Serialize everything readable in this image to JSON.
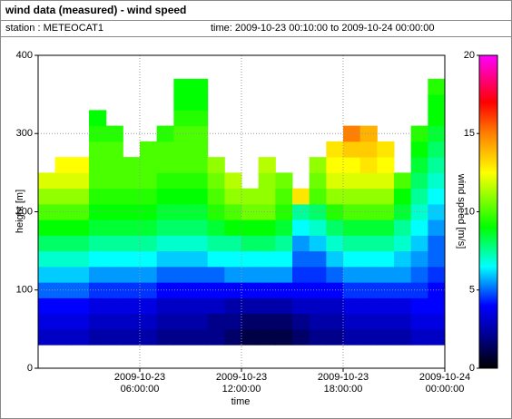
{
  "chart_data": {
    "type": "heatmap",
    "title": "wind data (measured) - wind speed",
    "station": "station : METEOCAT1",
    "time_range": "time: 2009-10-23 00:10:00 to 2009-10-24 00:00:00",
    "xlabel": "time",
    "ylabel": "height [m]",
    "colorbar_label": "wind speed [m/s]",
    "x": [
      "2009-10-23 00:00:00",
      "2009-10-23 01:00:00",
      "2009-10-23 02:00:00",
      "2009-10-23 03:00:00",
      "2009-10-23 04:00:00",
      "2009-10-23 05:00:00",
      "2009-10-23 06:00:00",
      "2009-10-23 07:00:00",
      "2009-10-23 08:00:00",
      "2009-10-23 09:00:00",
      "2009-10-23 10:00:00",
      "2009-10-23 11:00:00",
      "2009-10-23 12:00:00",
      "2009-10-23 13:00:00",
      "2009-10-23 14:00:00",
      "2009-10-23 15:00:00",
      "2009-10-23 16:00:00",
      "2009-10-23 17:00:00",
      "2009-10-23 18:00:00",
      "2009-10-23 19:00:00",
      "2009-10-23 20:00:00",
      "2009-10-23 21:00:00",
      "2009-10-23 22:00:00",
      "2009-10-23 23:00:00"
    ],
    "y": [
      40,
      60,
      80,
      100,
      120,
      140,
      160,
      180,
      200,
      220,
      240,
      260,
      280,
      300,
      320,
      340,
      360
    ],
    "z": [
      [
        3,
        3,
        3,
        2.5,
        2.5,
        2.5,
        2.5,
        2,
        2,
        2,
        2,
        1.5,
        1,
        1,
        1,
        1.5,
        2,
        2,
        2.5,
        2.5,
        2.5,
        2.5,
        3,
        3
      ],
      [
        3.5,
        3.5,
        3.5,
        3,
        3,
        3,
        3,
        2.5,
        2.5,
        2.5,
        2,
        2,
        1.5,
        1.5,
        1.5,
        2,
        2.5,
        2.5,
        3,
        3,
        3,
        3,
        3.5,
        3.5
      ],
      [
        4,
        4,
        4,
        3.5,
        3.5,
        3.5,
        3.5,
        3,
        3,
        3,
        3,
        2.5,
        2.5,
        2.5,
        2.5,
        3,
        3,
        3,
        3.5,
        3.5,
        3.5,
        3.5,
        4,
        4
      ],
      [
        5,
        5,
        5,
        4.5,
        4.5,
        4.5,
        4.5,
        4,
        4,
        4,
        4,
        4,
        4,
        4,
        4,
        4,
        4,
        4,
        4.5,
        4.5,
        4.5,
        4.5,
        4.5,
        4
      ],
      [
        6,
        6,
        6,
        5.5,
        5.5,
        5.5,
        5.5,
        5,
        5,
        5,
        5,
        5.5,
        5.5,
        5.5,
        5.5,
        4.5,
        4.5,
        5,
        5.5,
        5.5,
        5.5,
        5.5,
        5,
        4.5
      ],
      [
        7,
        7,
        7,
        6.5,
        6.5,
        6.5,
        6.5,
        6,
        6,
        6,
        6.5,
        6.5,
        6.5,
        6.5,
        6.5,
        5,
        5,
        6,
        6.5,
        6.5,
        6.5,
        6,
        5.5,
        5
      ],
      [
        8,
        8,
        8,
        7.5,
        7.5,
        7.5,
        7.5,
        7,
        7,
        7,
        7.5,
        7.5,
        8,
        8,
        7.5,
        5.5,
        6,
        7,
        7.5,
        7.5,
        7.5,
        7,
        6,
        5
      ],
      [
        9,
        9,
        9,
        8.5,
        8.5,
        8.5,
        8.5,
        8,
        8,
        8,
        8.5,
        9,
        9,
        9,
        8.5,
        6.5,
        7,
        8,
        8.5,
        8.5,
        8.5,
        7.5,
        6.5,
        5.5
      ],
      [
        10,
        10,
        10,
        9,
        9,
        9,
        9,
        8.5,
        8.5,
        8.5,
        9.5,
        10,
        10.5,
        10.5,
        9.5,
        7.5,
        8,
        9.5,
        10,
        10,
        10,
        8.5,
        7,
        6
      ],
      [
        11,
        11,
        11,
        9.5,
        9.5,
        9.5,
        9.5,
        9,
        9,
        9,
        10,
        11,
        11,
        11,
        10,
        13,
        10,
        11,
        11,
        11,
        11,
        9,
        7.5,
        6.5
      ],
      [
        12,
        12,
        12,
        10,
        10,
        10,
        10,
        9.5,
        9.5,
        9.5,
        10.5,
        11.5,
        null,
        11,
        10.5,
        null,
        10.5,
        12,
        12,
        12,
        12,
        10,
        8,
        7
      ],
      [
        null,
        12.5,
        12.5,
        10,
        10,
        10,
        10,
        10,
        10,
        10,
        11,
        null,
        null,
        11.5,
        null,
        null,
        11,
        12.5,
        12.5,
        13,
        12.5,
        null,
        8.5,
        7.5
      ],
      [
        null,
        null,
        null,
        10,
        10,
        null,
        10,
        10,
        10,
        10,
        null,
        null,
        null,
        null,
        null,
        null,
        null,
        13,
        13.5,
        13.5,
        13,
        null,
        9,
        8
      ],
      [
        null,
        null,
        null,
        9.5,
        9.5,
        null,
        null,
        9.5,
        10,
        10,
        null,
        null,
        null,
        null,
        null,
        null,
        null,
        null,
        15,
        14,
        null,
        null,
        9.5,
        8.5
      ],
      [
        null,
        null,
        null,
        9,
        null,
        null,
        null,
        null,
        9.5,
        9.5,
        null,
        null,
        null,
        null,
        null,
        null,
        null,
        null,
        null,
        null,
        null,
        null,
        null,
        9
      ],
      [
        null,
        null,
        null,
        null,
        null,
        null,
        null,
        null,
        9,
        9,
        null,
        null,
        null,
        null,
        null,
        null,
        null,
        null,
        null,
        null,
        null,
        null,
        null,
        9
      ],
      [
        null,
        null,
        null,
        null,
        null,
        null,
        null,
        null,
        9,
        9,
        null,
        null,
        null,
        null,
        null,
        null,
        null,
        null,
        null,
        null,
        null,
        null,
        null,
        9.5
      ]
    ],
    "xlim": [
      "2009-10-23 00:00:00",
      "2009-10-24 00:00:00"
    ],
    "xticks": [
      {
        "value": "2009-10-23 06:00:00",
        "label": "2009-10-23\n06:00:00"
      },
      {
        "value": "2009-10-23 12:00:00",
        "label": "2009-10-23\n12:00:00"
      },
      {
        "value": "2009-10-23 18:00:00",
        "label": "2009-10-23\n18:00:00"
      },
      {
        "value": "2009-10-24 00:00:00",
        "label": "2009-10-24\n00:00:00"
      }
    ],
    "ylim": [
      0,
      400
    ],
    "yticks": [
      0,
      100,
      200,
      300,
      400
    ],
    "clim": [
      0,
      20
    ],
    "cticks": [
      0,
      5,
      10,
      15,
      20
    ],
    "colorscale": [
      [
        0,
        "#000000"
      ],
      [
        2,
        "#00008b"
      ],
      [
        4,
        "#0000ff"
      ],
      [
        6.5,
        "#00ffff"
      ],
      [
        9,
        "#00ff00"
      ],
      [
        12.5,
        "#ffff00"
      ],
      [
        15,
        "#ff8000"
      ],
      [
        17,
        "#ff0000"
      ],
      [
        20,
        "#ff00ff"
      ]
    ],
    "grid": true
  }
}
